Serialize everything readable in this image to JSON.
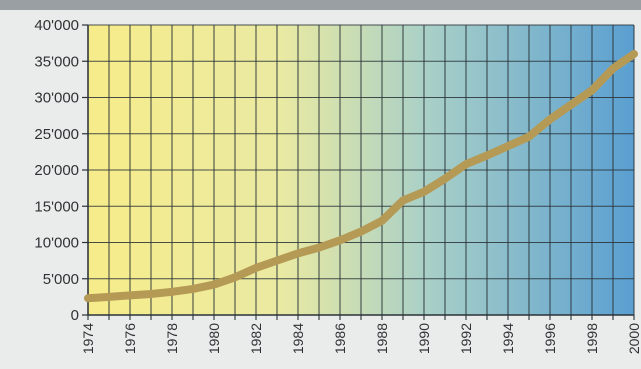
{
  "chart_data": {
    "type": "line",
    "title": "",
    "xlabel": "",
    "ylabel": "",
    "xlim": [
      1974,
      2000
    ],
    "ylim": [
      0,
      40000
    ],
    "grid": true,
    "y_tick_values": [
      0,
      5000,
      10000,
      15000,
      20000,
      25000,
      30000,
      35000,
      40000
    ],
    "y_tick_labels": [
      "0",
      "5'000",
      "10'000",
      "15'000",
      "20'000",
      "25'000",
      "30'000",
      "35'000",
      "40'000"
    ],
    "x_tick_values": [
      1974,
      1976,
      1978,
      1980,
      1982,
      1984,
      1986,
      1988,
      1990,
      1992,
      1994,
      1996,
      1998,
      2000
    ],
    "x_tick_labels": [
      "1974",
      "1976",
      "1978",
      "1980",
      "1982",
      "1984",
      "1986",
      "1988",
      "1990",
      "1992",
      "1994",
      "1996",
      "1998",
      "2000"
    ],
    "series": [
      {
        "x": [
          1974,
          1975,
          1976,
          1977,
          1978,
          1979,
          1980,
          1981,
          1982,
          1983,
          1984,
          1985,
          1986,
          1987,
          1988,
          1989,
          1990,
          1991,
          1992,
          1993,
          1994,
          1995,
          1996,
          1997,
          1998,
          1999,
          2000
        ],
        "values": [
          2300,
          2500,
          2700,
          2900,
          3200,
          3600,
          4200,
          5200,
          6500,
          7500,
          8500,
          9300,
          10300,
          11500,
          13000,
          15800,
          17000,
          18800,
          20800,
          22000,
          23300,
          24600,
          27000,
          29000,
          31000,
          34000,
          36000
        ]
      }
    ],
    "colors": {
      "line": "#b59a56",
      "gradient_left": "#f7ec8a",
      "gradient_mid": "#a9d0c7",
      "gradient_right": "#5a9fd1",
      "grid": "#2a3238"
    }
  }
}
